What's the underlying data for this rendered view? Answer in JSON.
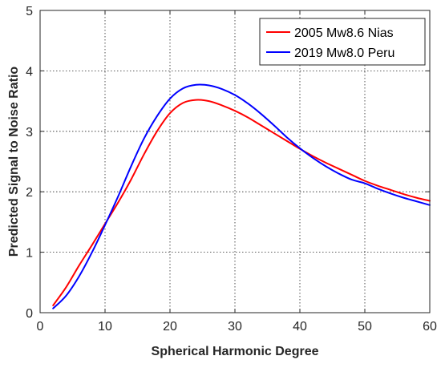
{
  "chart_data": {
    "type": "line",
    "title": "",
    "xlabel": "Spherical Harmonic Degree",
    "ylabel": "Predicted Signal to Noise Ratio",
    "xlim": [
      0,
      60
    ],
    "ylim": [
      0,
      5
    ],
    "xticks": [
      0,
      10,
      20,
      30,
      40,
      50,
      60
    ],
    "yticks": [
      0,
      1,
      2,
      3,
      4,
      5
    ],
    "xtick_labels": [
      "0",
      "10",
      "20",
      "30",
      "40",
      "50",
      "60"
    ],
    "ytick_labels": [
      "0",
      "1",
      "2",
      "3",
      "4",
      "5"
    ],
    "grid": true,
    "legend_position": "top-right",
    "series": [
      {
        "name": "2005 Mw8.6 Nias",
        "color": "#ff0000",
        "x": [
          2,
          4,
          6,
          8,
          10,
          12,
          14,
          16,
          18,
          20,
          22,
          24,
          26,
          28,
          30,
          32,
          34,
          36,
          38,
          40,
          42,
          44,
          46,
          48,
          50,
          52,
          54,
          56,
          58,
          60
        ],
        "y": [
          0.12,
          0.42,
          0.78,
          1.12,
          1.47,
          1.82,
          2.2,
          2.62,
          3.0,
          3.3,
          3.47,
          3.52,
          3.5,
          3.43,
          3.34,
          3.23,
          3.1,
          2.97,
          2.84,
          2.71,
          2.59,
          2.48,
          2.38,
          2.28,
          2.18,
          2.1,
          2.03,
          1.96,
          1.9,
          1.85
        ]
      },
      {
        "name": "2019 Mw8.0 Peru",
        "color": "#0000ff",
        "x": [
          2,
          4,
          6,
          8,
          10,
          12,
          14,
          16,
          18,
          20,
          22,
          24,
          26,
          28,
          30,
          32,
          34,
          36,
          38,
          40,
          42,
          44,
          46,
          48,
          50,
          52,
          54,
          56,
          58,
          60
        ],
        "y": [
          0.07,
          0.28,
          0.6,
          1.0,
          1.45,
          1.92,
          2.42,
          2.88,
          3.25,
          3.54,
          3.71,
          3.77,
          3.76,
          3.7,
          3.6,
          3.46,
          3.29,
          3.1,
          2.9,
          2.72,
          2.56,
          2.42,
          2.3,
          2.2,
          2.14,
          2.05,
          1.97,
          1.9,
          1.84,
          1.78
        ]
      }
    ]
  }
}
